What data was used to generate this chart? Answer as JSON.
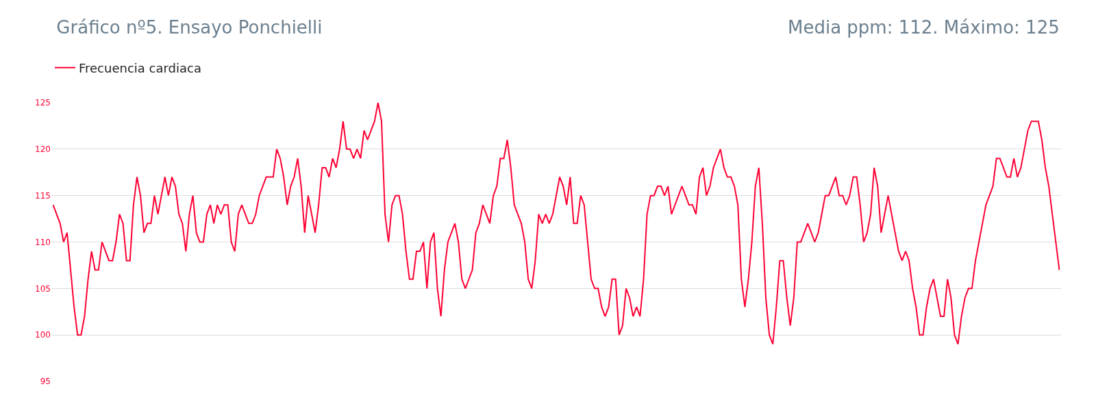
{
  "chart_data": {
    "type": "line",
    "title": "Gráfico nº5. Ensayo Ponchielli",
    "subtitle": "Media ppm: 112. Máximo: 125",
    "ylim": [
      95,
      125
    ],
    "yticks": [
      95,
      100,
      105,
      110,
      115,
      120,
      125
    ],
    "grid": "y",
    "legend": "top left",
    "marker": "none",
    "line_style": "solid",
    "categories": [
      null,
      null,
      null,
      null,
      null,
      null,
      null,
      null,
      null,
      null,
      null,
      null,
      null,
      null,
      null,
      null,
      null,
      null,
      null,
      null,
      null,
      null,
      null,
      null,
      null,
      null,
      null,
      null,
      null,
      null,
      null,
      null,
      null,
      null,
      null,
      null,
      null,
      null,
      null,
      null,
      null,
      null,
      null,
      null,
      null,
      null,
      null,
      null,
      null,
      null,
      null,
      null,
      null,
      null,
      null,
      null,
      null,
      null,
      null,
      null,
      null,
      null,
      null,
      null,
      null,
      null,
      null,
      null,
      null,
      null,
      null,
      null,
      null,
      null,
      null,
      null,
      null,
      null,
      null,
      null,
      null,
      null,
      null,
      null,
      null,
      null,
      null,
      null,
      null,
      null,
      null,
      null,
      null,
      null,
      null,
      null,
      null,
      null,
      null,
      null,
      null,
      null,
      null,
      null,
      null,
      null,
      null,
      null,
      null,
      null,
      null,
      null,
      null,
      null,
      null,
      null,
      null,
      null,
      null,
      null,
      null,
      null,
      null,
      null,
      null,
      null,
      null,
      null,
      null,
      null,
      null,
      null,
      null,
      null,
      null,
      null,
      null,
      null,
      null,
      null,
      null,
      null,
      null,
      null,
      null,
      null,
      null,
      null,
      null,
      null,
      null,
      null,
      null,
      null,
      null,
      null,
      null,
      null,
      null,
      null,
      null,
      null,
      null,
      null,
      null,
      null,
      null,
      null,
      null,
      null,
      null,
      null,
      null,
      null,
      null,
      null,
      null,
      null,
      null,
      null,
      null,
      null,
      null,
      null,
      null,
      null,
      null,
      null,
      null,
      null,
      null,
      null,
      null,
      null,
      null,
      null,
      null,
      null,
      null,
      null,
      null,
      null,
      null,
      null,
      null,
      null,
      null,
      null,
      null,
      null,
      null,
      null,
      null,
      null,
      null,
      null,
      null,
      null,
      null,
      null,
      null,
      null,
      null,
      null,
      null,
      null,
      null,
      null,
      null,
      null,
      null,
      null,
      null,
      null,
      null,
      null,
      null,
      null,
      null,
      null,
      null,
      null,
      null,
      null,
      null,
      null,
      null,
      null,
      null,
      null,
      null,
      null,
      null,
      null,
      null,
      null,
      null,
      null,
      null,
      null,
      null,
      null,
      null,
      null,
      null,
      null,
      null,
      null,
      null,
      null,
      null,
      null,
      null,
      null,
      null,
      null,
      null,
      null,
      null,
      null,
      null,
      null,
      null,
      null,
      null,
      null,
      null,
      null,
      null
    ],
    "series": [
      {
        "name": "Frecuencia cardiaca",
        "color": "#ff0033",
        "values": [
          114,
          113,
          112,
          110,
          111,
          107,
          103,
          100,
          100,
          102,
          106,
          109,
          107,
          107,
          110,
          109,
          108,
          108,
          110,
          113,
          112,
          108,
          108,
          114,
          117,
          115,
          111,
          112,
          112,
          115,
          113,
          115,
          117,
          115,
          117,
          116,
          113,
          112,
          109,
          113,
          115,
          111,
          110,
          110,
          113,
          114,
          112,
          114,
          113,
          114,
          114,
          110,
          109,
          113,
          114,
          113,
          112,
          112,
          113,
          115,
          116,
          117,
          117,
          117,
          120,
          119,
          117,
          114,
          116,
          117,
          119,
          116,
          111,
          115,
          113,
          111,
          114,
          118,
          118,
          117,
          119,
          118,
          120,
          123,
          120,
          120,
          119,
          120,
          119,
          122,
          121,
          122,
          123,
          125,
          123,
          113,
          110,
          114,
          115,
          115,
          113,
          109,
          106,
          106,
          109,
          109,
          110,
          105,
          110,
          111,
          105,
          102,
          107,
          110,
          111,
          112,
          110,
          106,
          105,
          106,
          107,
          111,
          112,
          114,
          113,
          112,
          115,
          116,
          119,
          119,
          121,
          118,
          114,
          113,
          112,
          110,
          106,
          105,
          108,
          113,
          112,
          113,
          112,
          113,
          115,
          117,
          116,
          114,
          117,
          112,
          112,
          115,
          114,
          110,
          106,
          105,
          105,
          103,
          102,
          103,
          106,
          106,
          100,
          101,
          105,
          104,
          102,
          103,
          102,
          106,
          113,
          115,
          115,
          116,
          116,
          115,
          116,
          113,
          114,
          115,
          116,
          115,
          114,
          114,
          113,
          117,
          118,
          115,
          116,
          118,
          119,
          120,
          118,
          117,
          117,
          116,
          114,
          106,
          103,
          106,
          110,
          116,
          118,
          112,
          104,
          100,
          99,
          103,
          108,
          108,
          104,
          101,
          104,
          110,
          110,
          111,
          112,
          111,
          110,
          111,
          113,
          115,
          115,
          116,
          117,
          115,
          115,
          114,
          115,
          117,
          117,
          114,
          110,
          111,
          113,
          118,
          116,
          111,
          113,
          115,
          113,
          111,
          109,
          108,
          109,
          108,
          105,
          103,
          100,
          100,
          103,
          105,
          106,
          104,
          102,
          102,
          106,
          104,
          100,
          99,
          102,
          104,
          105,
          105,
          108,
          110,
          112,
          114,
          115,
          116,
          119,
          119,
          118,
          117,
          117,
          119,
          117,
          118,
          120,
          122,
          123,
          123,
          123,
          121,
          118,
          116,
          113,
          110,
          107
        ]
      }
    ]
  }
}
